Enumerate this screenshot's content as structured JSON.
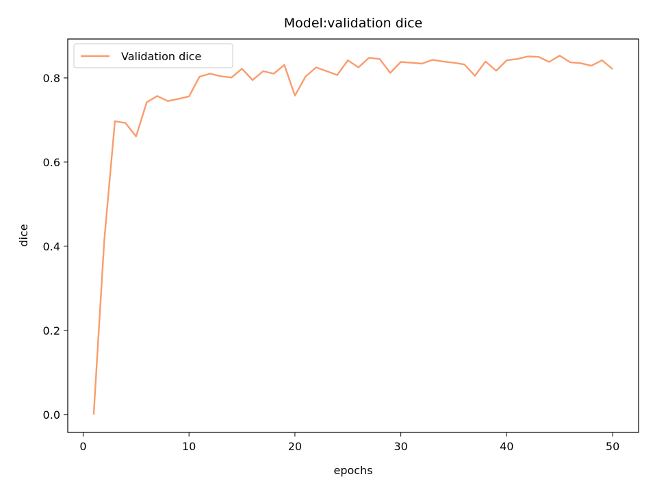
{
  "chart_data": {
    "type": "line",
    "title": "Model:validation  dice",
    "xlabel": "epochs",
    "ylabel": "dice",
    "xlim": [
      -1.45,
      52.45
    ],
    "ylim": [
      -0.0425,
      0.8925
    ],
    "xticks": [
      0,
      10,
      20,
      30,
      40,
      50
    ],
    "xtick_labels": [
      "0",
      "10",
      "20",
      "30",
      "40",
      "50"
    ],
    "yticks": [
      0.0,
      0.2,
      0.4,
      0.6,
      0.8
    ],
    "ytick_labels": [
      "0.0",
      "0.2",
      "0.4",
      "0.6",
      "0.8"
    ],
    "grid": false,
    "legend_position": "upper-left",
    "series": [
      {
        "name": "Validation dice",
        "color": "#fa9c6c",
        "x": [
          1,
          2,
          3,
          4,
          5,
          6,
          7,
          8,
          9,
          10,
          11,
          12,
          13,
          14,
          15,
          16,
          17,
          18,
          19,
          20,
          21,
          22,
          23,
          24,
          25,
          26,
          27,
          28,
          29,
          30,
          31,
          32,
          33,
          34,
          35,
          36,
          37,
          38,
          39,
          40,
          41,
          42,
          43,
          44,
          45,
          46,
          47,
          48,
          49,
          50
        ],
        "y": [
          0.0,
          0.415,
          0.697,
          0.693,
          0.661,
          0.742,
          0.757,
          0.745,
          0.75,
          0.756,
          0.803,
          0.81,
          0.804,
          0.801,
          0.822,
          0.795,
          0.816,
          0.81,
          0.831,
          0.758,
          0.803,
          0.825,
          0.816,
          0.807,
          0.842,
          0.825,
          0.848,
          0.845,
          0.812,
          0.838,
          0.836,
          0.834,
          0.843,
          0.839,
          0.836,
          0.832,
          0.805,
          0.839,
          0.817,
          0.842,
          0.845,
          0.851,
          0.85,
          0.838,
          0.853,
          0.837,
          0.835,
          0.829,
          0.842,
          0.821
        ]
      }
    ]
  }
}
